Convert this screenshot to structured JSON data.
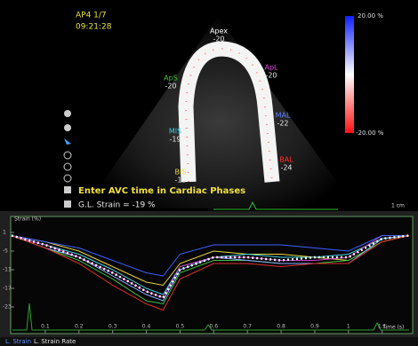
{
  "header": {
    "view": "AP4 1/7",
    "time": "09:21:28"
  },
  "colorbar": {
    "max": "20.00 %",
    "min": "-20.00 %"
  },
  "segments": [
    {
      "name": "Apex",
      "value": "-20"
    },
    {
      "name": "ApL",
      "value": "-20"
    },
    {
      "name": "ApS",
      "value": "-20"
    },
    {
      "name": "MAL",
      "value": "-22"
    },
    {
      "name": "MIS",
      "value": "-19"
    },
    {
      "name": "BAL",
      "value": "-24"
    },
    {
      "name": "BIS",
      "value": "-15"
    }
  ],
  "message": "Enter AVC time in Cardiac Phases",
  "global_strain": "G.L. Strain = -19 %",
  "scale": "1 cm",
  "chart_data": {
    "type": "line",
    "y_label": "Strain (%)",
    "x_label": "Time (s)",
    "x": [
      0,
      0.1,
      0.2,
      0.3,
      0.4,
      0.45,
      0.5,
      0.6,
      0.7,
      0.8,
      0.9,
      1.0,
      1.1,
      1.18
    ],
    "series": [
      {
        "color": "#e8d640",
        "values": [
          0,
          -2,
          -5,
          -10,
          -15,
          -16,
          -9,
          -5,
          -6,
          -6,
          -7,
          -8,
          -2,
          0
        ]
      },
      {
        "color": "#40d0e0",
        "values": [
          0,
          -3,
          -6,
          -11,
          -17,
          -19,
          -10,
          -7,
          -6,
          -7,
          -7,
          -6,
          -1,
          0
        ]
      },
      {
        "color": "#40c040",
        "values": [
          0,
          -4,
          -8,
          -14,
          -21,
          -22,
          -12,
          -8,
          -8,
          -9,
          -9,
          -8,
          -2,
          0
        ]
      },
      {
        "color": "#8ab0ff",
        "values": [
          0,
          -4,
          -7,
          -13,
          -19,
          -21,
          -11,
          -7,
          -8,
          -9,
          -9,
          -9,
          -1,
          0
        ]
      },
      {
        "color": "#d040d0",
        "values": [
          0,
          -3,
          -7,
          -12,
          -18,
          -20,
          -10,
          -7,
          -7,
          -8,
          -8,
          -7,
          0,
          0
        ]
      },
      {
        "color": "#4060ff",
        "values": [
          0,
          -2,
          -4,
          -8,
          -12,
          -13,
          -6,
          -3,
          -3,
          -3,
          -4,
          -5,
          0,
          0
        ]
      },
      {
        "color": "#e03030",
        "values": [
          0,
          -4,
          -9,
          -16,
          -22,
          -24,
          -14,
          -9,
          -9,
          -10,
          -9,
          -9,
          -2,
          0
        ]
      },
      {
        "color": "#ffffff",
        "values": [
          0,
          -3,
          -7,
          -12,
          -18,
          -20,
          -11,
          -7,
          -7,
          -8,
          -7,
          -7,
          -1,
          0
        ]
      }
    ],
    "xlim": [
      0,
      1.18
    ],
    "ylim": [
      -30,
      4
    ],
    "xticks": [
      0.1,
      0.2,
      0.3,
      0.4,
      0.5,
      0.6,
      0.7,
      0.8,
      0.9,
      1.0,
      1.1
    ],
    "yticks": [
      1,
      -5,
      -11,
      -17,
      -23
    ]
  },
  "tabs": [
    "L. Strain",
    "L. Strain Rate"
  ]
}
